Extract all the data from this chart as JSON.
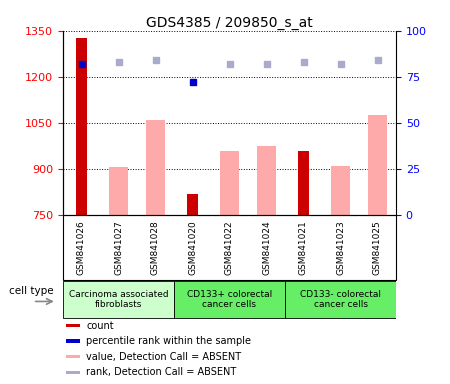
{
  "title": "GDS4385 / 209850_s_at",
  "samples": [
    "GSM841026",
    "GSM841027",
    "GSM841028",
    "GSM841020",
    "GSM841022",
    "GSM841024",
    "GSM841021",
    "GSM841023",
    "GSM841025"
  ],
  "count_values": [
    1325,
    null,
    null,
    820,
    null,
    null,
    960,
    null,
    null
  ],
  "value_absent": [
    null,
    905,
    1060,
    null,
    960,
    975,
    null,
    910,
    1075
  ],
  "percentile_rank": [
    82,
    null,
    null,
    72,
    null,
    null,
    null,
    null,
    null
  ],
  "rank_absent": [
    null,
    83,
    84,
    null,
    82,
    82,
    83,
    82,
    84
  ],
  "cell_groups": [
    {
      "label": "Carcinoma associated\nfibroblasts",
      "start": 0,
      "end": 3,
      "color": "#ccffcc"
    },
    {
      "label": "CD133+ colorectal\ncancer cells",
      "start": 3,
      "end": 6,
      "color": "#66ee66"
    },
    {
      "label": "CD133- colorectal\ncancer cells",
      "start": 6,
      "end": 9,
      "color": "#66ee66"
    }
  ],
  "ylim_left": [
    750,
    1350
  ],
  "ylim_right": [
    0,
    100
  ],
  "yticks_left": [
    750,
    900,
    1050,
    1200,
    1350
  ],
  "yticks_right": [
    0,
    25,
    50,
    75,
    100
  ],
  "bar_width": 0.5,
  "count_color": "#cc0000",
  "absent_value_color": "#ffaaaa",
  "rank_absent_color": "#aaaacc",
  "percentile_color": "#0000cc",
  "legend_items": [
    {
      "label": "count",
      "color": "#cc0000"
    },
    {
      "label": "percentile rank within the sample",
      "color": "#0000cc"
    },
    {
      "label": "value, Detection Call = ABSENT",
      "color": "#ffaaaa"
    },
    {
      "label": "rank, Detection Call = ABSENT",
      "color": "#aaaacc"
    }
  ],
  "cell_type_label": "cell type",
  "sample_bg_color": "#cccccc",
  "background_color": "#ffffff"
}
